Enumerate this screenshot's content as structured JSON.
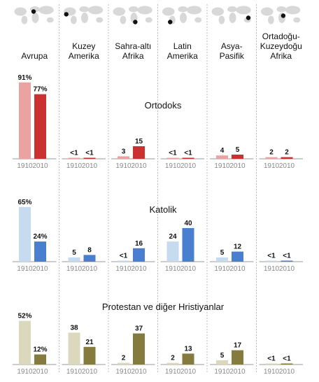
{
  "regions": [
    {
      "name": "Avrupa",
      "marker": {
        "x": 0.48,
        "y": 0.35
      }
    },
    {
      "name": "Kuzey\nAmerika",
      "marker": {
        "x": 0.1,
        "y": 0.48
      }
    },
    {
      "name": "Sahra-altı\nAfrika",
      "marker": {
        "x": 0.55,
        "y": 0.85
      }
    },
    {
      "name": "Latin\nAmerika",
      "marker": {
        "x": 0.22,
        "y": 0.85
      }
    },
    {
      "name": "Asya-\nPasifik",
      "marker": {
        "x": 0.88,
        "y": 0.65
      }
    },
    {
      "name": "Ortadoğu-\nKuzeydoğu\nAfrika",
      "marker": {
        "x": 0.55,
        "y": 0.55
      }
    }
  ],
  "chart_data": [
    {
      "type": "bar",
      "title": "Ortodoks",
      "categories": [
        "Avrupa",
        "Kuzey Amerika",
        "Sahra-altı Afrika",
        "Latin Amerika",
        "Asya-Pasifik",
        "Ortadoğu-Kuzeydoğu Afrika"
      ],
      "series": [
        {
          "name": "1910",
          "values": [
            91,
            0.5,
            3,
            0.5,
            4,
            2
          ],
          "labels": [
            "91%",
            "<1",
            "3",
            "<1",
            "4",
            "2"
          ],
          "color": "#eba3a1"
        },
        {
          "name": "2010",
          "values": [
            77,
            0.5,
            15,
            0.5,
            5,
            2
          ],
          "labels": [
            "77%",
            "<1",
            "15",
            "<1",
            "5",
            "2"
          ],
          "color": "#cc3131"
        }
      ],
      "ylim": [
        0,
        100
      ]
    },
    {
      "type": "bar",
      "title": "Katolik",
      "categories": [
        "Avrupa",
        "Kuzey Amerika",
        "Sahra-altı Afrika",
        "Latin Amerika",
        "Asya-Pasifik",
        "Ortadoğu-Kuzeydoğu Afrika"
      ],
      "series": [
        {
          "name": "1910",
          "values": [
            65,
            5,
            0.5,
            24,
            5,
            0.5
          ],
          "labels": [
            "65%",
            "5",
            "<1",
            "24",
            "5",
            "<1"
          ],
          "color": "#c6daf0"
        },
        {
          "name": "2010",
          "values": [
            24,
            8,
            16,
            40,
            12,
            0.5
          ],
          "labels": [
            "24%",
            "8",
            "16",
            "40",
            "12",
            "<1"
          ],
          "color": "#4a7fd0"
        }
      ],
      "ylim": [
        0,
        100
      ]
    },
    {
      "type": "bar",
      "title": "Protestan ve diğer Hristiyanlar",
      "categories": [
        "Avrupa",
        "Kuzey Amerika",
        "Sahra-altı Afrika",
        "Latin Amerika",
        "Asya-Pasifik",
        "Ortadoğu-Kuzeydoğu Afrika"
      ],
      "series": [
        {
          "name": "1910",
          "values": [
            52,
            38,
            2,
            2,
            5,
            0.5
          ],
          "labels": [
            "52%",
            "38",
            "2",
            "2",
            "5",
            "<1"
          ],
          "color": "#dcd8bd"
        },
        {
          "name": "2010",
          "values": [
            12,
            21,
            37,
            13,
            17,
            0.5
          ],
          "labels": [
            "12%",
            "21",
            "37",
            "13",
            "17",
            "<1"
          ],
          "color": "#857b3e"
        }
      ],
      "ylim": [
        0,
        100
      ]
    }
  ],
  "colors": {
    "map": "#d8d8d8",
    "marker": "#111111",
    "baseline": "#9a9a9a",
    "divider": "#bbbbbb"
  }
}
